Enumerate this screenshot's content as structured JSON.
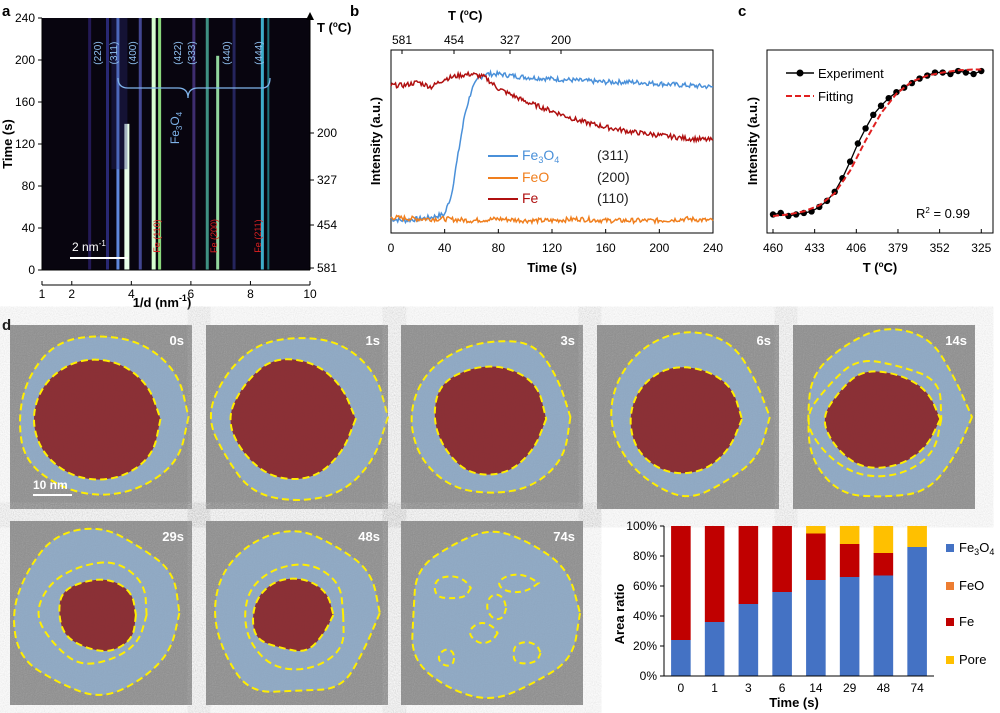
{
  "panels": {
    "a": {
      "label": "a",
      "ylabel": "Time (s)",
      "xlabel": "1/d (nm",
      "xlabel_sup": "-1",
      "xlabel_tail": ")",
      "right_axis_title_T": "T (",
      "right_axis_title_deg": "o",
      "right_axis_title_tail": "C)",
      "left_ticks": [
        "0",
        "40",
        "80",
        "120",
        "160",
        "200",
        "240"
      ],
      "right_ticks": [
        "200",
        "327",
        "454",
        "581"
      ],
      "bottom_ticks": [
        "1",
        "2",
        "4",
        "6",
        "8",
        "10"
      ],
      "scale_bar": "2 nm",
      "scale_bar_sup": "-1",
      "peaks": [
        "(220)",
        "(311)",
        "(400)",
        "(422)",
        "(333)",
        "(440)",
        "(444)"
      ],
      "phase_label": "Fe",
      "phase_sub1": "3",
      "phase_o": "O",
      "phase_sub2": "4",
      "fe_peaks": [
        "Fe (110)",
        "Fe (200)",
        "Fe (211)"
      ]
    },
    "b": {
      "label": "b",
      "top_title": "T (",
      "top_title_deg": "o",
      "top_title_tail": "C)",
      "top_ticks": [
        "581",
        "454",
        "327",
        "200"
      ]
    },
    "c": {
      "label": "c",
      "r2": "R",
      "r2_sup": "2",
      "r2_tail": " = 0.99",
      "xlabel": "T (",
      "xlabel_deg": "o",
      "xlabel_tail": "C)"
    },
    "d": {
      "label": "d",
      "frames": [
        "0s",
        "1s",
        "3s",
        "6s",
        "14s",
        "29s",
        "48s",
        "74s"
      ],
      "scale_bar": "10 nm"
    }
  },
  "colors": {
    "fe3o4": "#4a90d9",
    "feo": "#f07f1e",
    "fe": "#c00000",
    "pore": "#ffc000",
    "fit": "#e02020",
    "yellow_outline": "#ffee00"
  },
  "chart_data": [
    {
      "type": "line",
      "panel": "b",
      "xlabel": "Time (s)",
      "ylabel": "Intensity (a.u.)",
      "xlim": [
        0,
        240
      ],
      "x_ticks": [
        0,
        40,
        80,
        120,
        160,
        200,
        240
      ],
      "series": [
        {
          "name": "Fe3O4",
          "name_parts": [
            "Fe",
            "3",
            "O",
            "4"
          ],
          "peak": "(311)",
          "color": "#4a90d9",
          "x": [
            0,
            10,
            20,
            30,
            40,
            45,
            50,
            55,
            60,
            65,
            70,
            80,
            100,
            120,
            140,
            160,
            180,
            200,
            220,
            240
          ],
          "y": [
            0.05,
            0.04,
            0.05,
            0.06,
            0.08,
            0.2,
            0.45,
            0.7,
            0.85,
            0.92,
            0.95,
            0.95,
            0.93,
            0.92,
            0.91,
            0.9,
            0.9,
            0.89,
            0.88,
            0.87
          ]
        },
        {
          "name": "FeO",
          "peak": "(200)",
          "color": "#f07f1e",
          "x": [
            0,
            20,
            40,
            60,
            80,
            100,
            120,
            140,
            160,
            180,
            200,
            220,
            240
          ],
          "y": [
            0.06,
            0.05,
            0.05,
            0.04,
            0.05,
            0.04,
            0.04,
            0.05,
            0.04,
            0.04,
            0.04,
            0.05,
            0.04
          ]
        },
        {
          "name": "Fe",
          "peak": "(110)",
          "color": "#b01010",
          "x": [
            0,
            10,
            20,
            30,
            40,
            50,
            60,
            70,
            80,
            90,
            100,
            120,
            140,
            160,
            180,
            200,
            220,
            240
          ],
          "y": [
            0.88,
            0.88,
            0.9,
            0.87,
            0.92,
            0.94,
            0.95,
            0.93,
            0.86,
            0.82,
            0.78,
            0.72,
            0.66,
            0.62,
            0.59,
            0.57,
            0.55,
            0.54
          ]
        }
      ]
    },
    {
      "type": "line",
      "panel": "c",
      "xlabel": "T (oC)",
      "ylabel": "Intensity (a.u.)",
      "x_ticks": [
        "460",
        "433",
        "406",
        "379",
        "352",
        "325"
      ],
      "series": [
        {
          "name": "Experiment",
          "color": "#000000",
          "x": [
            460,
            455,
            450,
            445,
            440,
            435,
            430,
            425,
            420,
            415,
            410,
            405,
            400,
            395,
            390,
            385,
            380,
            375,
            370,
            365,
            360,
            355,
            350,
            345,
            340,
            335,
            330,
            325
          ],
          "y": [
            0.03,
            0.04,
            0.02,
            0.03,
            0.04,
            0.05,
            0.08,
            0.12,
            0.18,
            0.27,
            0.38,
            0.5,
            0.6,
            0.69,
            0.75,
            0.8,
            0.84,
            0.87,
            0.9,
            0.93,
            0.95,
            0.97,
            0.97,
            0.96,
            0.98,
            0.97,
            0.96,
            0.98
          ]
        },
        {
          "name": "Fitting",
          "color": "#e02020",
          "style": "dashed",
          "x": [
            460,
            450,
            440,
            430,
            420,
            410,
            400,
            390,
            380,
            370,
            360,
            350,
            340,
            330,
            325
          ],
          "y": [
            0.02,
            0.03,
            0.05,
            0.09,
            0.17,
            0.32,
            0.52,
            0.7,
            0.83,
            0.91,
            0.95,
            0.97,
            0.985,
            0.99,
            0.99
          ]
        }
      ]
    },
    {
      "type": "bar",
      "stacked": true,
      "panel": "d",
      "xlabel": "Time (s)",
      "ylabel": "Area ratio",
      "categories": [
        "0",
        "1",
        "3",
        "6",
        "14",
        "29",
        "48",
        "74"
      ],
      "y_ticks": [
        "0%",
        "20%",
        "40%",
        "60%",
        "80%",
        "100%"
      ],
      "ylim": [
        0,
        100
      ],
      "series": [
        {
          "name": "Fe3O4",
          "name_parts": [
            "Fe",
            "3",
            "O",
            "4"
          ],
          "color": "#4472c4",
          "values": [
            24,
            36,
            48,
            56,
            64,
            66,
            67,
            86
          ]
        },
        {
          "name": "FeO",
          "color": "#ed7d31",
          "values": [
            0,
            0,
            0,
            0,
            0,
            0,
            0,
            0
          ]
        },
        {
          "name": "Fe",
          "color": "#c00000",
          "values": [
            76,
            64,
            52,
            44,
            31,
            22,
            15,
            0
          ]
        },
        {
          "name": "Pore",
          "color": "#ffc000",
          "values": [
            0,
            0,
            0,
            0,
            5,
            12,
            18,
            14
          ]
        }
      ]
    }
  ]
}
